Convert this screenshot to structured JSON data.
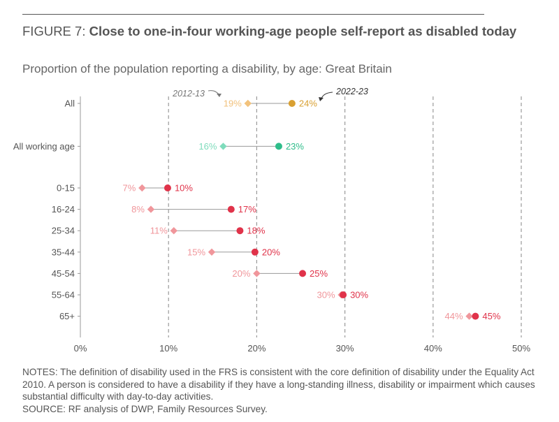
{
  "header": {
    "figure_label": "FIGURE 7: ",
    "title": "Close to one-in-four working-age people self-report as disabled today",
    "subtitle": "Proportion of the population reporting a disability, by age: Great Britain"
  },
  "colors": {
    "all_2012": "#f2c27c",
    "all_2022": "#d9a032",
    "wa_2012": "#7fdcbc",
    "wa_2022": "#2ebd8a",
    "age_2012": "#f0969b",
    "age_2022": "#e0334a",
    "connector": "#9a9a9a",
    "grid": "#9a9a9a",
    "axis_text": "#555555"
  },
  "chart_data": {
    "type": "dumbbell",
    "title": "Proportion of the population reporting a disability, by age: Great Britain",
    "xlabel": "",
    "ylabel": "",
    "xlim": [
      0,
      50
    ],
    "x_ticks": [
      0,
      10,
      20,
      30,
      40,
      50
    ],
    "x_tick_labels": [
      "0%",
      "10%",
      "20%",
      "30%",
      "40%",
      "50%"
    ],
    "series_names": [
      "2012-13",
      "2022-23"
    ],
    "annotations": {
      "start_series": "2012-13",
      "end_series": "2022-23"
    },
    "categories": [
      "All",
      "All working age",
      "0-15",
      "16-24",
      "25-34",
      "35-44",
      "45-54",
      "55-64",
      "65+"
    ],
    "rows": [
      {
        "label": "All",
        "group": "all",
        "v2012": 19,
        "v2022": 24,
        "l2012": "19%",
        "l2022": "24%"
      },
      {
        "label": "All working age",
        "group": "wa",
        "v2012": 16.2,
        "v2022": 22.5,
        "l2012": "16%",
        "l2022": "23%"
      },
      {
        "label": "0-15",
        "group": "age",
        "v2012": 7,
        "v2022": 9.9,
        "l2012": "7%",
        "l2022": "10%"
      },
      {
        "label": "16-24",
        "group": "age",
        "v2012": 8,
        "v2022": 17.1,
        "l2012": "8%",
        "l2022": "17%"
      },
      {
        "label": "25-34",
        "group": "age",
        "v2012": 10.6,
        "v2022": 18.1,
        "l2012": "11%",
        "l2022": "18%"
      },
      {
        "label": "35-44",
        "group": "age",
        "v2012": 14.9,
        "v2022": 19.8,
        "l2012": "15%",
        "l2022": "20%"
      },
      {
        "label": "45-54",
        "group": "age",
        "v2012": 20,
        "v2022": 25.2,
        "l2012": "20%",
        "l2022": "25%"
      },
      {
        "label": "55-64",
        "group": "age",
        "v2012": 29.6,
        "v2022": 29.8,
        "l2012": "30%",
        "l2022": "30%"
      },
      {
        "label": "65+",
        "group": "age",
        "v2012": 44.1,
        "v2022": 44.8,
        "l2012": "44%",
        "l2022": "45%"
      }
    ]
  },
  "notes": {
    "text": "NOTES: The definition of disability used in the FRS is consistent with the core definition of disability under the Equality Act 2010. A person is considered to have a disability if they have a long-standing illness, disability or impairment which causes substantial difficulty with day-to-day activities.",
    "source": "SOURCE: RF analysis of DWP, Family Resources Survey."
  }
}
